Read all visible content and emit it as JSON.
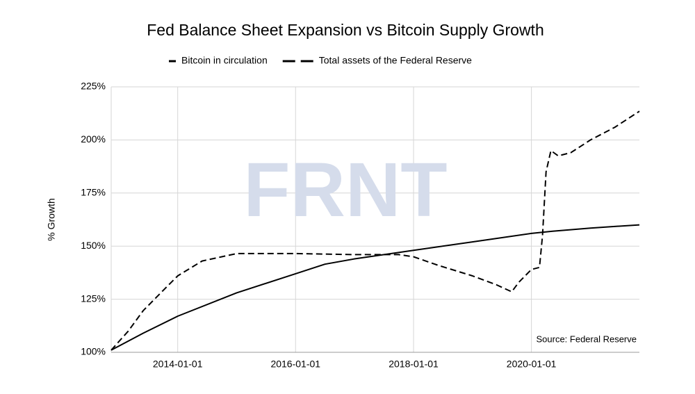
{
  "chart_data": {
    "type": "line",
    "title": "Fed Balance Sheet Expansion vs Bitcoin Supply Growth",
    "y_label": "% Growth",
    "watermark": "FRNT",
    "annotation": "Source: Federal Reserve",
    "legend": "top",
    "grid": true,
    "xlim": [
      "2012-11-15",
      "2021-10-31"
    ],
    "xticks": [
      "2014-01-01",
      "2016-01-01",
      "2018-01-01",
      "2020-01-01"
    ],
    "ylim": [
      100,
      225
    ],
    "yticks": [
      {
        "value": 100,
        "label": "100%"
      },
      {
        "value": 125,
        "label": "125%"
      },
      {
        "value": 150,
        "label": "150%"
      },
      {
        "value": 175,
        "label": "175%"
      },
      {
        "value": 200,
        "label": "200%"
      },
      {
        "value": 225,
        "label": "225%"
      }
    ],
    "series": [
      {
        "name": "Bitcoin in circulation",
        "color": "#000000",
        "dash": "solid",
        "x": [
          "2012-11-15",
          "2013-06-01",
          "2014-01-01",
          "2015-01-01",
          "2016-01-01",
          "2016-07-01",
          "2017-01-01",
          "2018-01-01",
          "2019-01-01",
          "2020-01-01",
          "2020-05-11",
          "2021-01-01",
          "2021-10-31"
        ],
        "values": [
          101,
          109,
          117,
          128,
          137,
          141.5,
          144,
          148,
          152,
          156,
          157,
          158.5,
          160
        ]
      },
      {
        "name": "Total assets of the Federal Reserve",
        "color": "#000000",
        "dash": "dashed",
        "x": [
          "2012-11-15",
          "2013-03-01",
          "2013-06-01",
          "2013-10-01",
          "2014-01-01",
          "2014-06-01",
          "2014-10-01",
          "2015-01-01",
          "2016-01-01",
          "2017-01-01",
          "2017-10-01",
          "2018-01-01",
          "2018-06-01",
          "2019-01-01",
          "2019-06-01",
          "2019-09-01",
          "2019-10-15",
          "2020-01-01",
          "2020-02-20",
          "2020-03-10",
          "2020-04-01",
          "2020-05-01",
          "2020-06-15",
          "2020-09-01",
          "2021-01-01",
          "2021-06-01",
          "2021-10-31"
        ],
        "values": [
          101,
          110,
          119.6,
          129,
          136,
          143,
          145,
          146.5,
          146.5,
          146,
          146,
          145,
          141,
          136,
          131.7,
          128.5,
          133,
          139,
          140,
          155,
          185,
          195,
          192.5,
          194,
          200,
          206,
          213.5
        ]
      }
    ]
  }
}
